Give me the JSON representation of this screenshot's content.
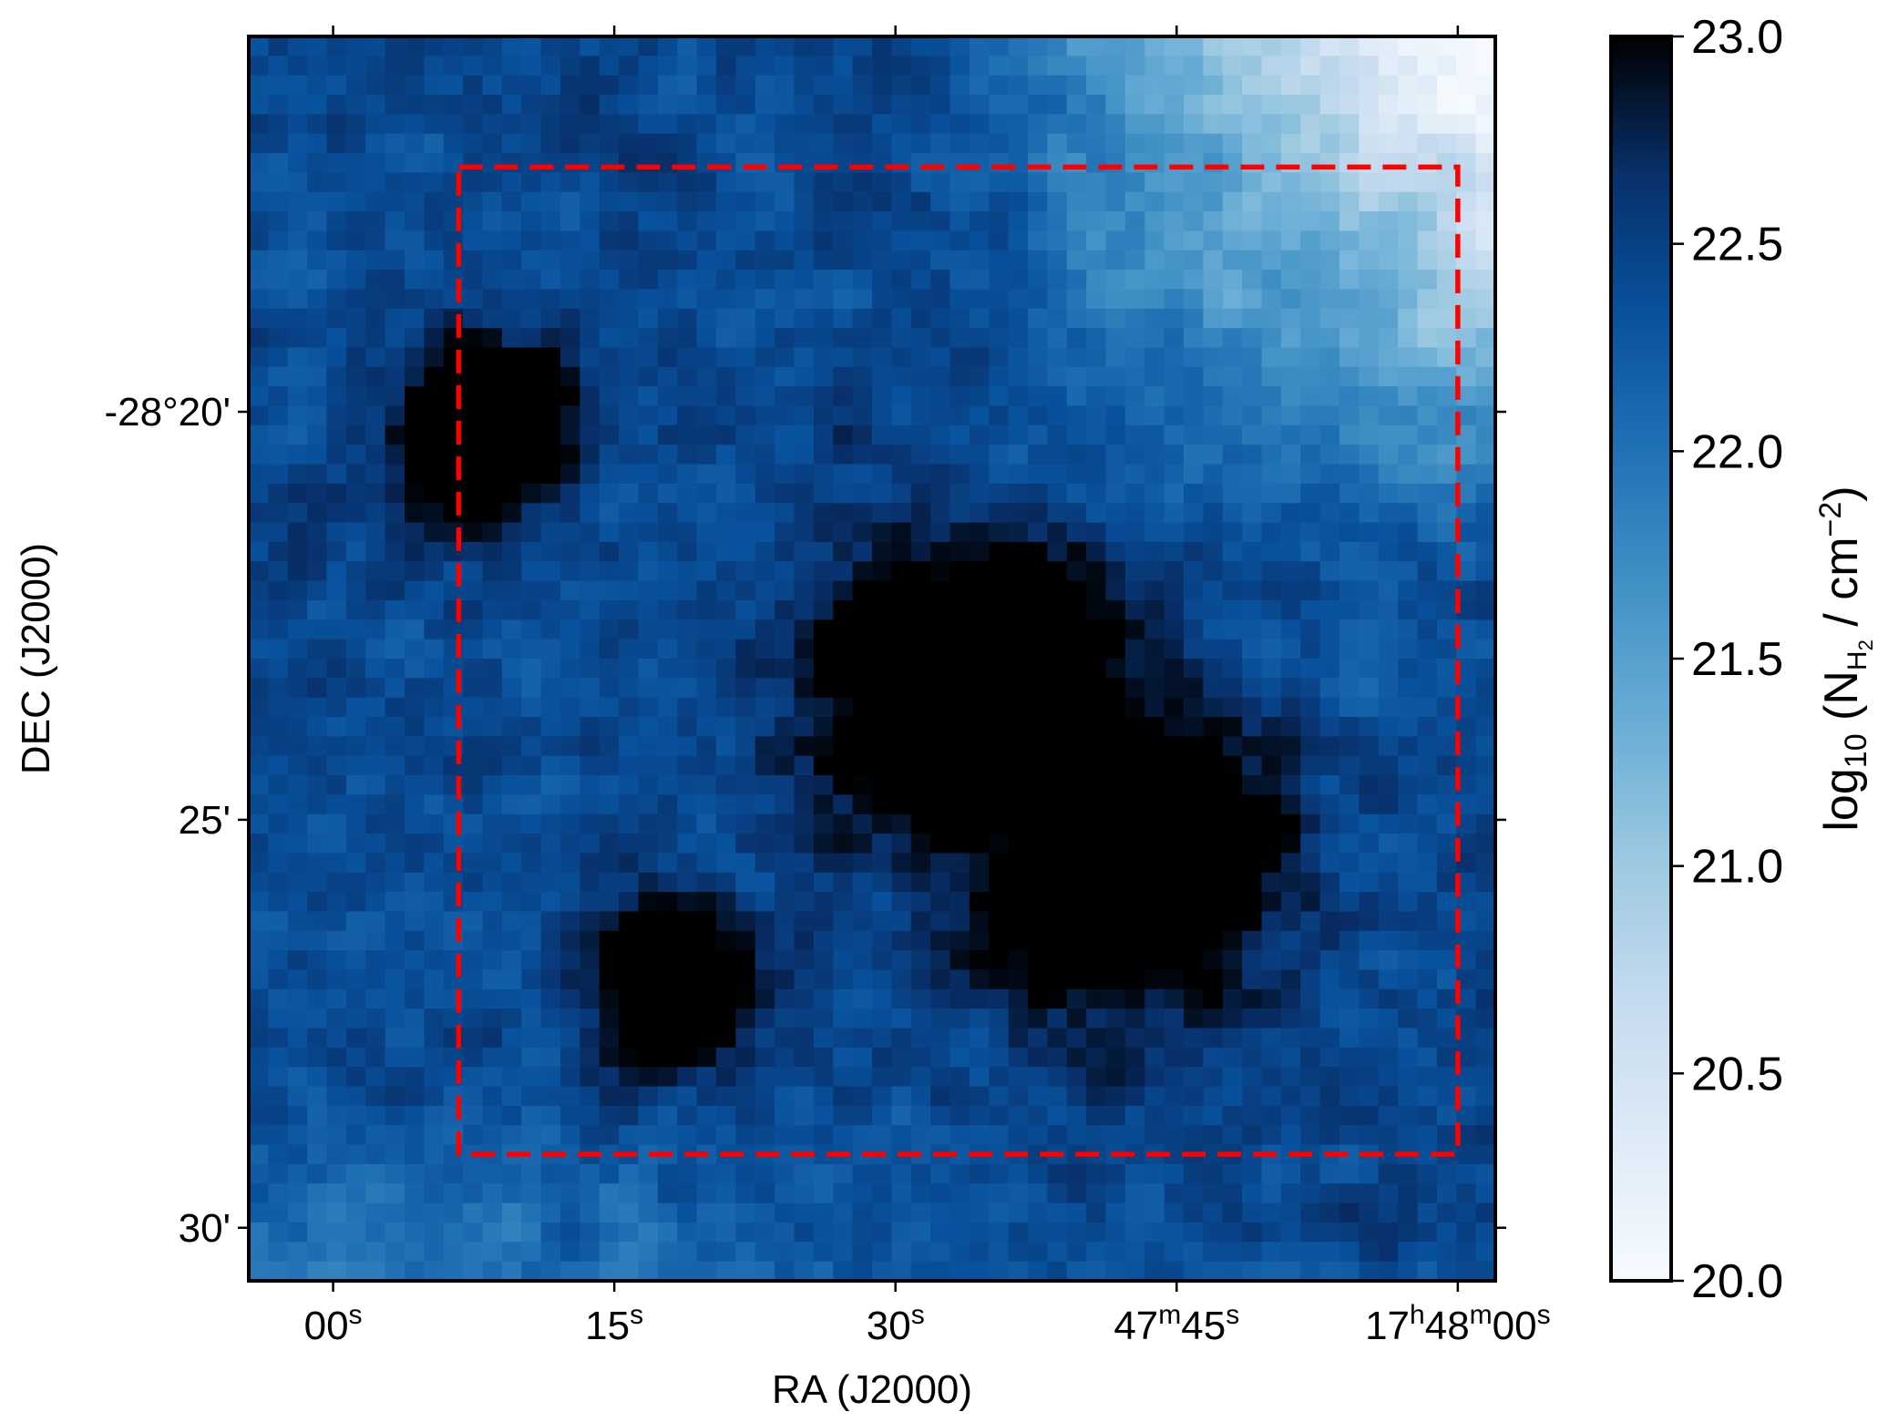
{
  "chart_data": {
    "type": "heatmap",
    "title": "",
    "xlabel": "RA (J2000)",
    "ylabel": "DEC (J2000)",
    "colorbar_label": "log10 (NH2 / cm−2)",
    "colorbar_label_parts": {
      "base": "log",
      "base_sub": "10",
      "open": " (N",
      "n_sub": "H",
      "n_sub2": "2",
      "mid": " / cm",
      "sup": "−2",
      "close": ")"
    },
    "colormap": "Blues",
    "colormap_stops": [
      "#f7fbff",
      "#deebf7",
      "#c6dbef",
      "#9ecae1",
      "#6baed6",
      "#4292c6",
      "#2171b5",
      "#08519c",
      "#08306b",
      "#000000"
    ],
    "color_range": [
      20.0,
      23.0
    ],
    "colorbar_ticks": [
      "20.0",
      "20.5",
      "21.0",
      "21.5",
      "22.0",
      "22.5",
      "23.0"
    ],
    "x_ticks": [
      {
        "label_parts": [
          [
            "17",
            "n"
          ],
          [
            "h",
            "sup"
          ],
          [
            "48",
            "n"
          ],
          [
            "m",
            "sup"
          ],
          [
            "00",
            "n"
          ],
          [
            "s",
            "sup"
          ]
        ]
      },
      {
        "label_parts": [
          [
            "47",
            "n"
          ],
          [
            "m",
            "sup"
          ],
          [
            "45",
            "n"
          ],
          [
            "s",
            "sup"
          ]
        ]
      },
      {
        "label_parts": [
          [
            "30",
            "n"
          ],
          [
            "s",
            "sup"
          ]
        ]
      },
      {
        "label_parts": [
          [
            "15",
            "n"
          ],
          [
            "s",
            "sup"
          ]
        ]
      },
      {
        "label_parts": [
          [
            "00",
            "n"
          ],
          [
            "s",
            "sup"
          ]
        ]
      }
    ],
    "x_tick_ra_seconds": [
      0,
      15,
      30,
      45,
      60
    ],
    "x_range_ra_seconds": [
      -2.0,
      64.5
    ],
    "y_ticks": [
      "-28°20'",
      "25'",
      "30'"
    ],
    "y_tick_dec_arcmin": [
      20,
      25,
      30
    ],
    "y_range_dec_arcmin": [
      15.4,
      30.65
    ],
    "grid": false,
    "map_grid": {
      "cols": 64,
      "rows": 64
    },
    "dense_core": {
      "peak_value": 23.0,
      "regions": [
        {
          "ra_s": 26,
          "dec_arcmin": 23.5,
          "spread": 0.14
        },
        {
          "ra_s": 18,
          "dec_arcmin": 25.5,
          "spread": 0.14
        },
        {
          "ra_s": 52,
          "dec_arcmin": 20.2,
          "spread": 0.08
        },
        {
          "ra_s": 42,
          "dec_arcmin": 27.0,
          "spread": 0.07
        }
      ]
    },
    "background_gradient": {
      "ne_min": 20.0,
      "sw_value": 21.9,
      "mean": 22.4
    },
    "box": {
      "ra_seconds": [
        53.3,
        0.0
      ],
      "dec_arcmin": [
        17.0,
        29.1
      ],
      "color": "#ff0000",
      "style": "dashed"
    }
  }
}
